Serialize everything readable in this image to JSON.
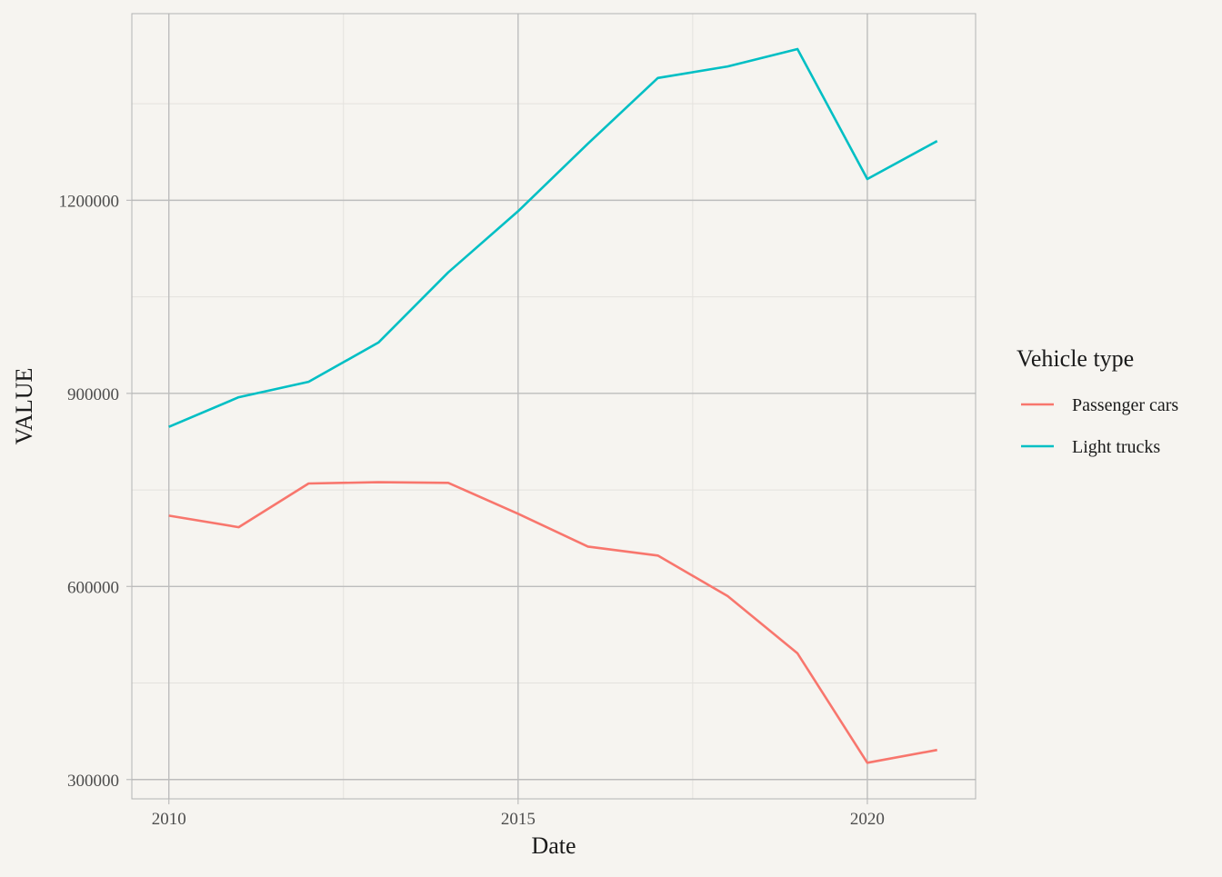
{
  "chart_data": {
    "type": "line",
    "xlabel": "Date",
    "ylabel": "VALUE",
    "x": [
      2010,
      2011,
      2012,
      2013,
      2014,
      2015,
      2016,
      2017,
      2018,
      2019,
      2020,
      2021
    ],
    "xlim": [
      2009.47,
      2021.55
    ],
    "ylim": [
      270000,
      1490000
    ],
    "x_ticks": [
      2010,
      2015,
      2020
    ],
    "x_tick_labels": [
      "2010",
      "2015",
      "2020"
    ],
    "y_ticks": [
      300000,
      600000,
      900000,
      1200000
    ],
    "y_tick_labels": [
      "300000",
      "600000",
      "900000",
      "1200000"
    ],
    "x_minor_ticks": [
      2012.5,
      2017.5
    ],
    "y_minor_ticks": [
      450000,
      750000,
      1050000,
      1350000
    ],
    "grid": true,
    "legend": {
      "title": "Vehicle type",
      "position": "right"
    },
    "series": [
      {
        "name": "Passenger cars",
        "color": "#f8766d",
        "values": [
          710000,
          692000,
          760000,
          762000,
          761000,
          713000,
          662000,
          648000,
          585000,
          496000,
          326000,
          346000
        ]
      },
      {
        "name": "Light trucks",
        "color": "#00bfc4",
        "values": [
          848000,
          894000,
          918000,
          979000,
          1088000,
          1183000,
          1288000,
          1390000,
          1408000,
          1435000,
          1233000,
          1292000
        ]
      }
    ],
    "colors": {
      "background": "#f6f4f0",
      "grid_major": "#bdbdbd",
      "grid_minor": "#e4e2de",
      "panel_border": "#b3b3b3"
    }
  }
}
